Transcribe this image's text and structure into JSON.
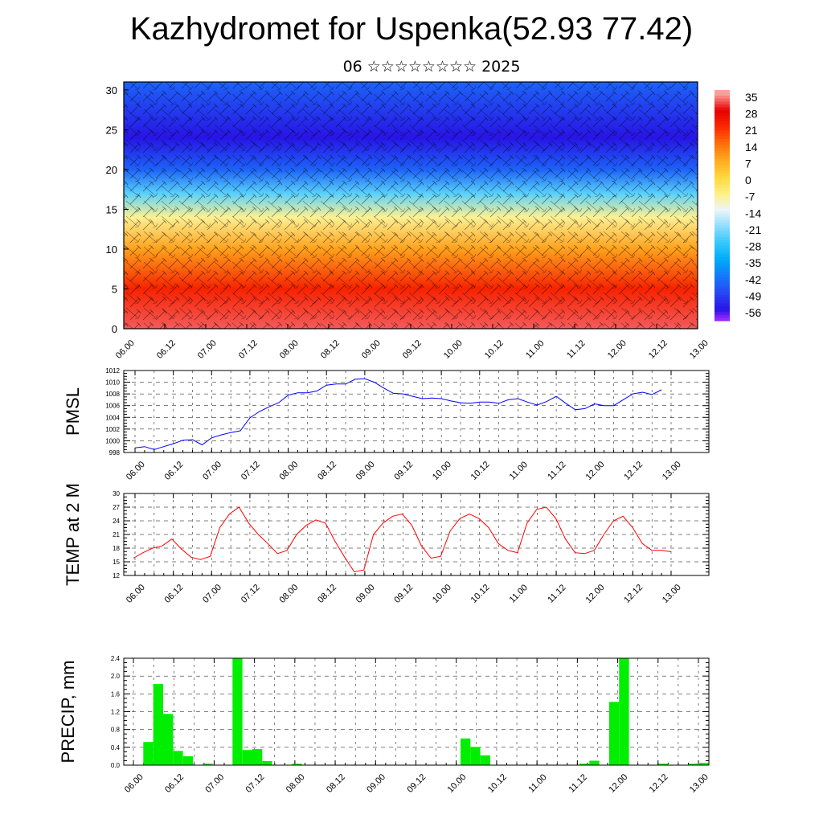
{
  "title": "Kazhydromet for Uspenka(52.93 77.42)",
  "subtitle": "06 ☆☆☆☆☆☆☆☆ 2025",
  "colors": {
    "pmsl": "#0000ff",
    "temp": "#ff0000",
    "precip": "#00ee00"
  },
  "chart_data": [
    {
      "type": "heatmap",
      "name": "temperature-wind-cross-section",
      "x_tick_labels": [
        "06.00",
        "06.12",
        "07.00",
        "07.12",
        "08.00",
        "08.12",
        "09.00",
        "09.12",
        "10.00",
        "10.12",
        "11.00",
        "11.12",
        "12.00",
        "12.12",
        "13.00"
      ],
      "y_tick_labels": [
        "0",
        "5",
        "10",
        "15",
        "20",
        "25",
        "30"
      ],
      "ylim": [
        0,
        31
      ],
      "colorbar_labels": [
        "35",
        "28",
        "21",
        "14",
        "7",
        "0",
        "-7",
        "-14",
        "-21",
        "-28",
        "-35",
        "-42",
        "-49",
        "-56"
      ],
      "overlay": "wind barbs",
      "temperature_profile_by_height": [
        {
          "height": 0,
          "value": 32
        },
        {
          "height": 5,
          "value": 22
        },
        {
          "height": 10,
          "value": 8
        },
        {
          "height": 14,
          "value": -8
        },
        {
          "height": 17,
          "value": -25
        },
        {
          "height": 20,
          "value": -45
        },
        {
          "height": 24,
          "value": -56
        },
        {
          "height": 31,
          "value": -45
        }
      ]
    },
    {
      "type": "line",
      "name": "pmsl",
      "ylabel": "PMSL",
      "ylim": [
        998,
        1012
      ],
      "y_tick_labels": [
        "998",
        "1000",
        "1002",
        "1004",
        "1006",
        "1008",
        "1010",
        "1012"
      ],
      "x_tick_labels": [
        "06.00",
        "06.12",
        "07.00",
        "07.12",
        "08.00",
        "08.12",
        "09.00",
        "09.12",
        "10.00",
        "10.12",
        "11.00",
        "11.12",
        "12.00",
        "12.12",
        "13.00"
      ],
      "x": [
        0,
        1,
        2,
        3,
        4,
        5,
        6,
        7,
        8,
        9,
        10,
        11,
        12,
        13,
        14,
        15,
        16,
        17,
        18,
        19,
        20,
        21,
        22,
        23,
        24,
        25,
        26,
        27,
        28,
        29,
        30,
        31,
        32,
        33,
        34,
        35,
        36,
        37,
        38,
        39,
        40,
        41,
        42,
        43,
        44,
        45,
        46,
        47,
        48,
        49,
        50,
        51,
        52,
        53,
        54,
        55,
        56
      ],
      "values": [
        998.8,
        999.0,
        998.5,
        999.0,
        999.5,
        1000.1,
        1000.2,
        999.3,
        1000.5,
        1001.0,
        1001.4,
        1001.7,
        1003.9,
        1005.0,
        1005.8,
        1006.5,
        1007.8,
        1008.2,
        1008.2,
        1008.5,
        1009.5,
        1009.7,
        1009.7,
        1010.5,
        1010.6,
        1010.0,
        1009.0,
        1008.1,
        1008.0,
        1007.6,
        1007.2,
        1007.3,
        1007.2,
        1006.8,
        1006.5,
        1006.4,
        1006.6,
        1006.6,
        1006.4,
        1007.0,
        1007.2,
        1006.6,
        1006.1,
        1006.7,
        1007.6,
        1006.4,
        1005.3,
        1005.5,
        1006.3,
        1006.0,
        1006.0,
        1007.0,
        1008.0,
        1008.3,
        1007.9,
        1008.7,
        null
      ]
    },
    {
      "type": "line",
      "name": "temp2m",
      "ylabel": "TEMP at 2 M",
      "ylim": [
        12,
        30
      ],
      "y_tick_labels": [
        "12",
        "15",
        "18",
        "21",
        "24",
        "27",
        "30"
      ],
      "x_tick_labels": [
        "06.00",
        "06.12",
        "07.00",
        "07.12",
        "08.00",
        "08.12",
        "09.00",
        "09.12",
        "10.00",
        "10.12",
        "11.00",
        "11.12",
        "12.00",
        "12.12",
        "13.00"
      ],
      "values": [
        15.8,
        17.0,
        18.0,
        18.5,
        20.0,
        17.8,
        16.0,
        15.5,
        16.2,
        22.5,
        25.5,
        27.0,
        23.5,
        21.0,
        19.0,
        16.8,
        17.5,
        21.0,
        23.0,
        24.2,
        23.5,
        19.5,
        16.0,
        12.8,
        13.2,
        21.0,
        23.5,
        25.0,
        25.5,
        23.0,
        18.5,
        15.8,
        16.2,
        21.8,
        24.5,
        25.5,
        24.5,
        22.5,
        19.0,
        17.5,
        17.0,
        23.5,
        26.5,
        27.0,
        24.5,
        20.0,
        17.0,
        16.8,
        17.5,
        21.0,
        24.0,
        25.0,
        22.5,
        19.0,
        17.5,
        17.5,
        17.2
      ]
    },
    {
      "type": "bar",
      "name": "precip",
      "ylabel": "PRECIP, mm",
      "ylim": [
        0,
        2.4
      ],
      "y_tick_labels": [
        "0.0",
        "0.4",
        "0.8",
        "1.2",
        "1.6",
        "2.0",
        "2.4"
      ],
      "x_tick_labels": [
        "06.00",
        "06.12",
        "07.00",
        "07.12",
        "08.00",
        "08.12",
        "09.00",
        "09.12",
        "10.00",
        "10.12",
        "11.00",
        "11.12",
        "12.00",
        "12.12",
        "13.00"
      ],
      "values": [
        0,
        0.52,
        1.82,
        1.15,
        0.32,
        0.2,
        0,
        0.03,
        0,
        0,
        2.4,
        0.34,
        0.36,
        0.09,
        0,
        0,
        0.03,
        0,
        0,
        0,
        0,
        0,
        0,
        0,
        0,
        0,
        0,
        0,
        0,
        0,
        0,
        0,
        0,
        0.6,
        0.41,
        0.22,
        0,
        0,
        0,
        0,
        0,
        0,
        0,
        0,
        0,
        0.03,
        0.1,
        0,
        1.42,
        2.4,
        0,
        0,
        0,
        0.03,
        0,
        0,
        0.03,
        0.05
      ]
    }
  ]
}
